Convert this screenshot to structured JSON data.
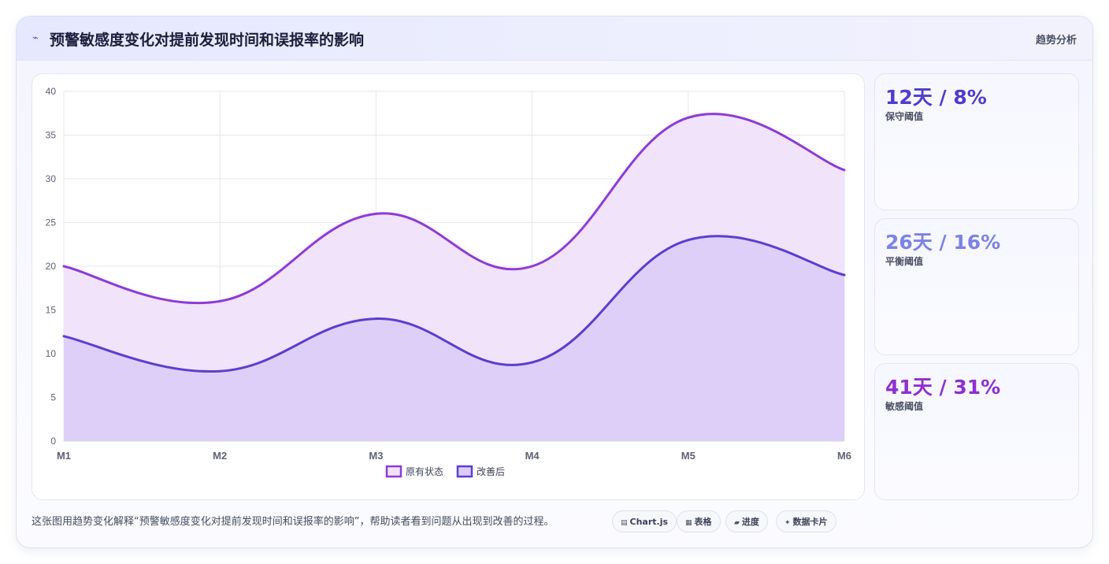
{
  "header": {
    "icon": "trend-line-icon",
    "title": "预警敏感度变化对提前发现时间和误报率的影响",
    "tag": "趋势分析"
  },
  "chart_data": {
    "type": "area",
    "categories": [
      "M1",
      "M2",
      "M3",
      "M4",
      "M5",
      "M6"
    ],
    "ylim": [
      0,
      40
    ],
    "yticks": [
      0,
      5,
      10,
      15,
      20,
      25,
      30,
      35,
      40
    ],
    "grid": true,
    "legend_position": "bottom",
    "series": [
      {
        "name": "原有状态",
        "values": [
          20,
          16,
          26,
          20,
          37,
          31
        ],
        "color": "#8e3bd6",
        "fill": "#efe2fa"
      },
      {
        "name": "改善后",
        "values": [
          12,
          8,
          14,
          9,
          23,
          19
        ],
        "color": "#5a3fcf",
        "fill": "#dcccf7"
      }
    ]
  },
  "kpis": [
    {
      "value": "12天 / 8%",
      "label": "保守阈值",
      "color": "#4e3ccf"
    },
    {
      "value": "26天 / 16%",
      "label": "平衡阈值",
      "color": "#7b82e6"
    },
    {
      "value": "41天 / 31%",
      "label": "敏感阈值",
      "color": "#8e2fd0"
    }
  ],
  "footer": {
    "text": "这张图用趋势变化解释“预警敏感度变化对提前发现时间和误报率的影响”，帮助读者看到问题从出现到改善的过程。",
    "chips": [
      {
        "icon": "chart-icon",
        "glyph": "▤",
        "label": "Chart.js"
      },
      {
        "icon": "table-icon",
        "glyph": "▦",
        "label": "表格"
      },
      {
        "icon": "progress-icon",
        "glyph": "▰",
        "label": "进度"
      },
      {
        "icon": "card-icon",
        "glyph": "✦",
        "label": "数据卡片"
      }
    ]
  }
}
